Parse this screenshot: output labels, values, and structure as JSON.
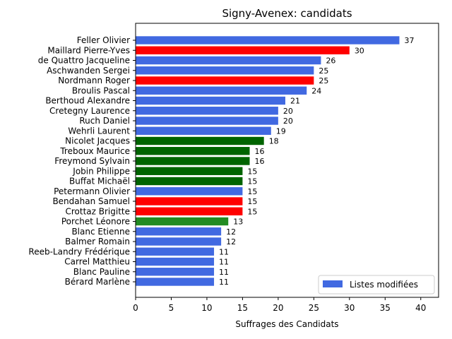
{
  "chart_data": {
    "type": "bar",
    "orientation": "horizontal",
    "title": "Signy-Avenex: candidats",
    "xlabel": "Suffrages des Candidats",
    "ylabel": "",
    "xlim": [
      0,
      42.5
    ],
    "xticks": [
      0,
      5,
      10,
      15,
      20,
      25,
      30,
      35,
      40
    ],
    "grid": false,
    "legend": {
      "placement": "bottom-right",
      "entries": [
        {
          "label": "Listes modifiées",
          "color": "#4169e1"
        }
      ]
    },
    "categories": [
      "Feller Olivier",
      "Maillard Pierre-Yves",
      "de Quattro Jacqueline",
      "Aschwanden Sergei",
      "Nordmann Roger",
      "Broulis Pascal",
      "Berthoud Alexandre",
      "Cretegny Laurence",
      "Ruch Daniel",
      "Wehrli Laurent",
      "Nicolet Jacques",
      "Treboux Maurice",
      "Freymond Sylvain",
      "Jobin Philippe",
      "Buffat Michaël",
      "Petermann Olivier",
      "Bendahan Samuel",
      "Crottaz Brigitte",
      "Porchet Léonore",
      "Blanc Etienne",
      "Balmer Romain",
      "Reeb-Landry Frédérique",
      "Carrel Matthieu",
      "Blanc Pauline",
      "Bérard Marlène"
    ],
    "values": [
      37,
      30,
      26,
      25,
      25,
      24,
      21,
      20,
      20,
      19,
      18,
      16,
      16,
      15,
      15,
      15,
      15,
      15,
      13,
      12,
      12,
      11,
      11,
      11,
      11
    ],
    "colors": [
      "#4169e1",
      "#ff0000",
      "#4169e1",
      "#4169e1",
      "#ff0000",
      "#4169e1",
      "#4169e1",
      "#4169e1",
      "#4169e1",
      "#4169e1",
      "#006400",
      "#006400",
      "#006400",
      "#006400",
      "#006400",
      "#4169e1",
      "#ff0000",
      "#ff0000",
      "#228b22",
      "#4169e1",
      "#4169e1",
      "#4169e1",
      "#4169e1",
      "#4169e1",
      "#4169e1"
    ]
  }
}
